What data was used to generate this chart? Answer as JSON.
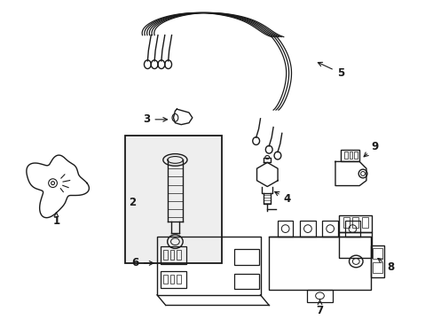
{
  "background_color": "#ffffff",
  "line_color": "#1a1a1a",
  "line_width": 1.0,
  "label_fontsize": 8.5,
  "fig_w": 4.89,
  "fig_h": 3.6,
  "dpi": 100
}
